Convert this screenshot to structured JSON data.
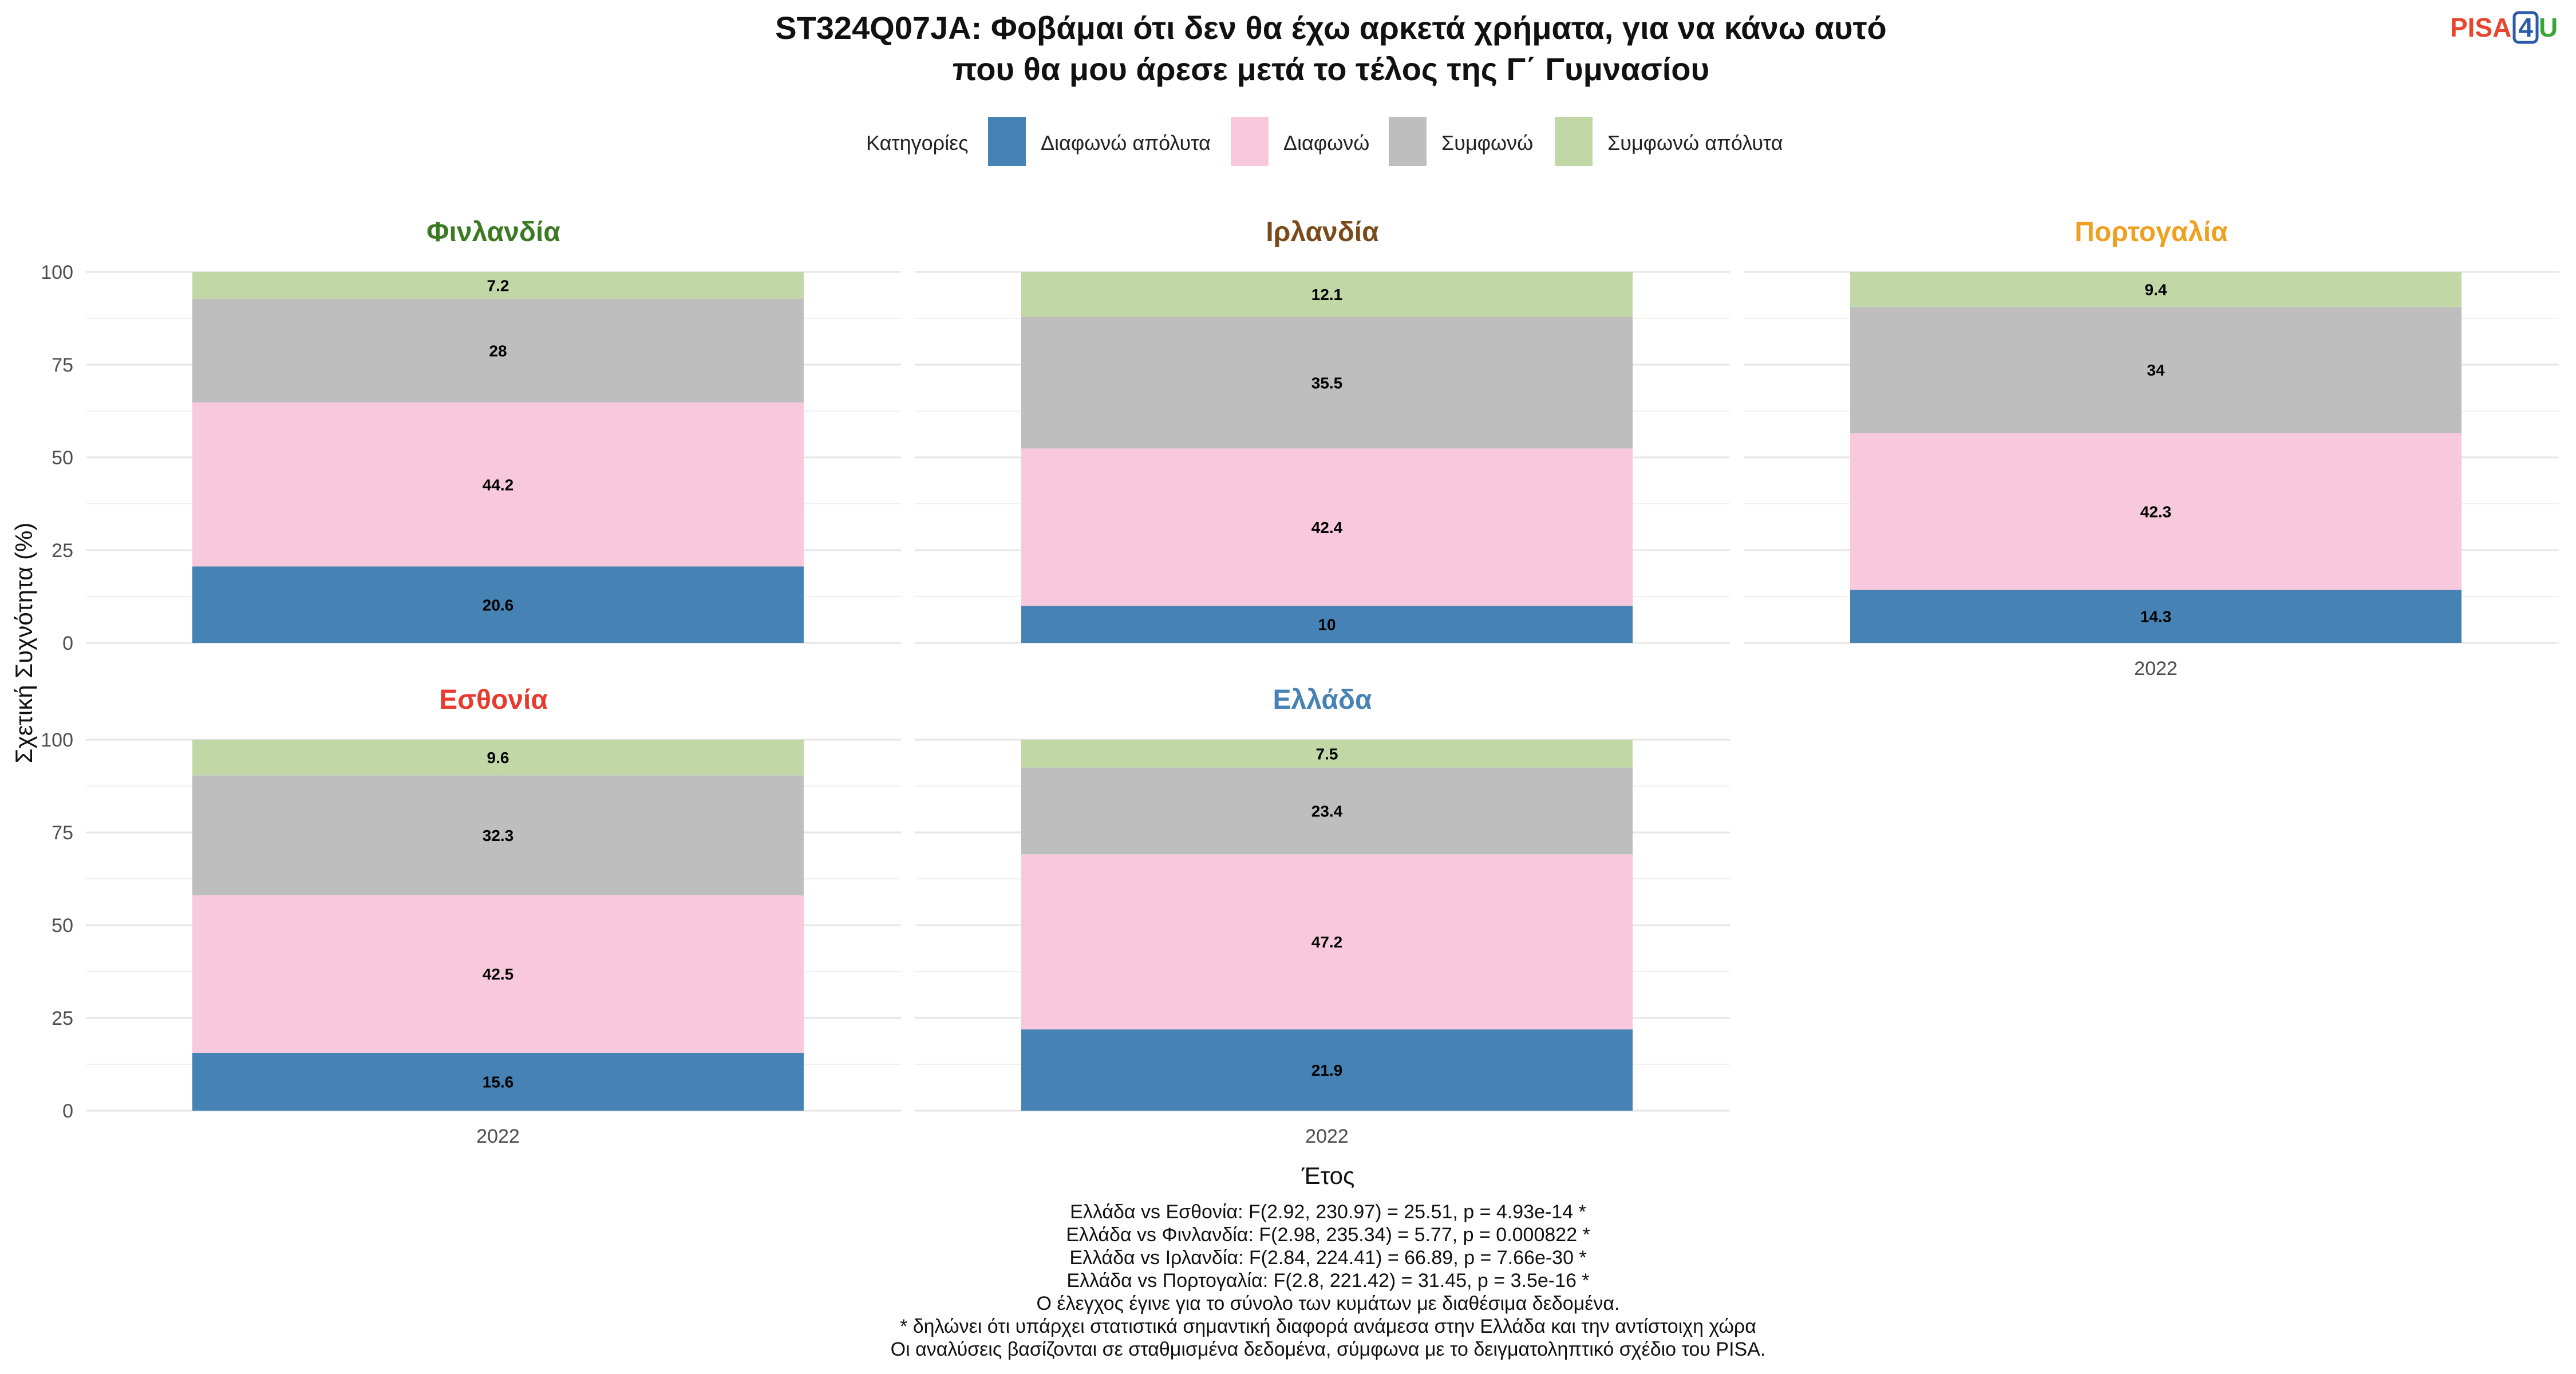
{
  "title_line1": "ST324Q07JA: Φοβάμαι ότι δεν θα έχω αρκετά χρήματα, για να κάνω αυτό",
  "title_line2": "που θα μου άρεσε μετά το τέλος της Γ΄ Γυμνασίου",
  "logo": {
    "pisa": "PISA",
    "digit": "4",
    "u": "U",
    "pisa_color": "#e8452c",
    "digit_color": "#2a5aa8",
    "u_color": "#3aa537"
  },
  "legend": {
    "title": "Κατηγορίες",
    "placement": "top",
    "items": [
      {
        "label": "Διαφωνώ απόλυτα",
        "color": "#4682B4"
      },
      {
        "label": "Διαφωνώ",
        "color": "#F8C8DC"
      },
      {
        "label": "Συμφωνώ",
        "color": "#BEBEBE"
      },
      {
        "label": "Συμφωνώ απόλυτα",
        "color": "#C1D7A6"
      }
    ]
  },
  "chart_data": {
    "type": "bar",
    "stacked": true,
    "xlabel": "Έτος",
    "ylabel": "Σχετική Συχνότητα (%)",
    "ylim": [
      0,
      100
    ],
    "yticks": [
      0,
      25,
      50,
      75,
      100
    ],
    "grid": true,
    "categories": [
      "Διαφωνώ απόλυτα",
      "Διαφωνώ",
      "Συμφωνώ",
      "Συμφωνώ απόλυτα"
    ],
    "panels": [
      {
        "country": "Φινλανδία",
        "color": "#3b7a22",
        "year": "2022",
        "values": [
          20.6,
          44.2,
          28,
          7.2
        ]
      },
      {
        "country": "Ιρλανδία",
        "color": "#7a4a1a",
        "year": "2022",
        "values": [
          10,
          42.4,
          35.5,
          12.1
        ]
      },
      {
        "country": "Πορτογαλία",
        "color": "#f0a020",
        "year": "2022",
        "values": [
          14.3,
          42.3,
          34,
          9.4
        ]
      },
      {
        "country": "Εσθονία",
        "color": "#e83a2f",
        "year": "2022",
        "values": [
          15.6,
          42.5,
          32.3,
          9.6
        ]
      },
      {
        "country": "Ελλάδα",
        "color": "#4682B4",
        "year": "2022",
        "values": [
          21.9,
          47.2,
          23.4,
          7.5
        ]
      }
    ]
  },
  "footnotes": [
    "Ελλάδα vs Εσθονία: F(2.92, 230.97) = 25.51, p = 4.93e-14 *",
    "Ελλάδα vs Φινλανδία: F(2.98, 235.34) = 5.77, p = 0.000822 *",
    "Ελλάδα vs Ιρλανδία: F(2.84, 224.41) = 66.89, p = 7.66e-30 *",
    "Ελλάδα vs Πορτογαλία: F(2.8, 221.42) = 31.45, p = 3.5e-16 *",
    "Ο έλεγχος έγινε για το σύνολο των κυμάτων με διαθέσιμα δεδομένα.",
    "* δηλώνει ότι υπάρχει στατιστικά σημαντική διαφορά ανάμεσα στην Ελλάδα και την αντίστοιχη χώρα",
    "Οι αναλύσεις βασίζονται σε σταθμισμένα δεδομένα, σύμφωνα με το δειγματοληπτικό σχέδιο του PISA."
  ]
}
